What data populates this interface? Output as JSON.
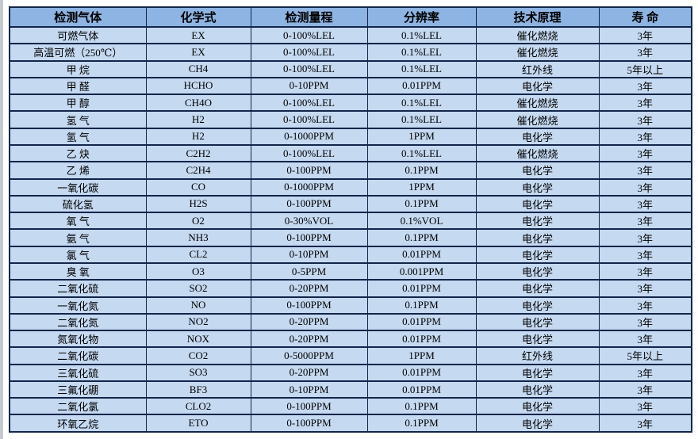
{
  "table": {
    "column_keys": [
      "gas",
      "formula",
      "range",
      "resolution",
      "principle",
      "lifespan"
    ],
    "headers": [
      "检测气体",
      "化学式",
      "检测量程",
      "分辨率",
      "技术原理",
      "寿 命"
    ],
    "rows": [
      [
        "可燃气体",
        "EX",
        "0-100%LEL",
        "0.1%LEL",
        "催化燃烧",
        "3年"
      ],
      [
        "高温可燃（250℃）",
        "EX",
        "0-100%LEL",
        "0.1%LEL",
        "催化燃烧",
        "3年"
      ],
      [
        "甲 烷",
        "CH4",
        "0-100%LEL",
        "0.1%LEL",
        "红外线",
        "5年以上"
      ],
      [
        "甲 醛",
        "HCHO",
        "0-10PPM",
        "0.01PPM",
        "电化学",
        "3年"
      ],
      [
        "甲 醇",
        "CH4O",
        "0-100%LEL",
        "0.1%LEL",
        "催化燃烧",
        "3年"
      ],
      [
        "氢 气",
        "H2",
        "0-100%LEL",
        "0.1%LEL",
        "催化燃烧",
        "3年"
      ],
      [
        "氢 气",
        "H2",
        "0-1000PPM",
        "1PPM",
        "电化学",
        "3年"
      ],
      [
        "乙 炔",
        "C2H2",
        "0-100%LEL",
        "0.1%LEL",
        "催化燃烧",
        "3年"
      ],
      [
        "乙 烯",
        "C2H4",
        "0-100PPM",
        "0.1PPM",
        "电化学",
        "3年"
      ],
      [
        "一氧化碳",
        "CO",
        "0-1000PPM",
        "1PPM",
        "电化学",
        "3年"
      ],
      [
        "硫化氢",
        "H2S",
        "0-100PPM",
        "0.1PPM",
        "电化学",
        "3年"
      ],
      [
        "氧 气",
        "O2",
        "0-30%VOL",
        "0.1%VOL",
        "电化学",
        "3年"
      ],
      [
        "氨 气",
        "NH3",
        "0-100PPM",
        "0.1PPM",
        "电化学",
        "3年"
      ],
      [
        "氯 气",
        "CL2",
        "0-10PPM",
        "0.01PPM",
        "电化学",
        "3年"
      ],
      [
        "臭 氧",
        "O3",
        "0-5PPM",
        "0.001PPM",
        "电化学",
        "3年"
      ],
      [
        "二氧化硫",
        "SO2",
        "0-20PPM",
        "0.01PPM",
        "电化学",
        "3年"
      ],
      [
        "一氧化氮",
        "NO",
        "0-100PPM",
        "0.1PPM",
        "电化学",
        "3年"
      ],
      [
        "二氧化氮",
        "NO2",
        "0-20PPM",
        "0.01PPM",
        "电化学",
        "3年"
      ],
      [
        "氮氧化物",
        "NOX",
        "0-20PPM",
        "0.01PPM",
        "电化学",
        "3年"
      ],
      [
        "二氧化碳",
        "CO2",
        "0-5000PPM",
        "1PPM",
        "红外线",
        "5年以上"
      ],
      [
        "三氧化硫",
        "SO3",
        "0-20PPM",
        "0.01PPM",
        "电化学",
        "3年"
      ],
      [
        "三氟化硼",
        "BF3",
        "0-10PPM",
        "0.01PPM",
        "电化学",
        "3年"
      ],
      [
        "二氧化氯",
        "CLO2",
        "0-100PPM",
        "0.1PPM",
        "电化学",
        "3年"
      ],
      [
        "环氧乙烷",
        "ETO",
        "0-100PPM",
        "0.1PPM",
        "电化学",
        "3年"
      ]
    ]
  },
  "colors": {
    "header_bg": "#8DB4E2",
    "row_bg": "#C5D9F1",
    "border": "#13254A",
    "text": "#000000",
    "page_bg": "#FFFFFF",
    "page_edge": "#C4C9CF"
  }
}
